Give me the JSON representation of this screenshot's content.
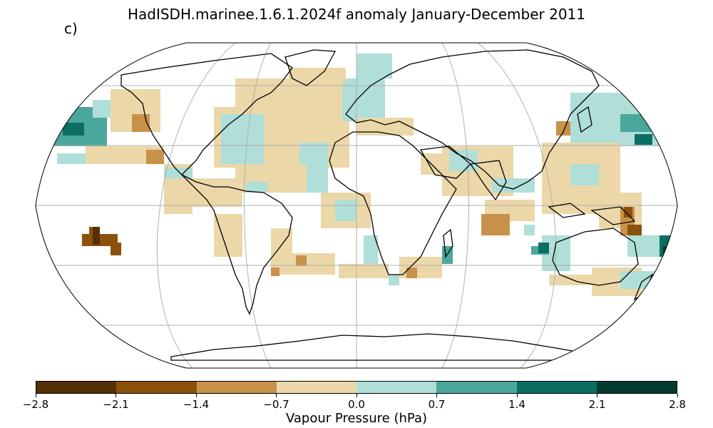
{
  "title": "HadISDH.marinee.1.6.1.2024f anomaly January-December 2011",
  "panel_label": "c)",
  "colorbar": {
    "label": "Vapour Pressure (hPa)",
    "ticks": [
      "−2.8",
      "−2.1",
      "−1.4",
      "−0.7",
      "0.0",
      "0.7",
      "1.4",
      "2.1",
      "2.8"
    ],
    "colors": [
      "#543005",
      "#8c510a",
      "#c8914a",
      "#ebd7a8",
      "#b0ded8",
      "#4aa79c",
      "#0b6e63",
      "#003c30"
    ]
  },
  "map": {
    "projection": "Robinson",
    "ocean_color": "#ffffff",
    "gridline_color": "#b0b0b0",
    "coastline_color": "#000000"
  }
}
